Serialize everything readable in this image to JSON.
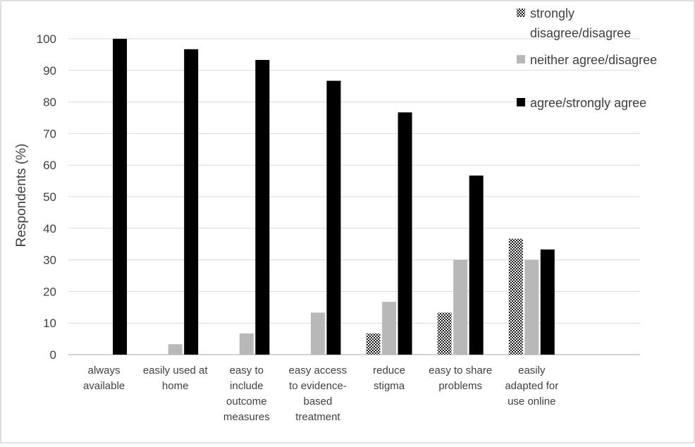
{
  "chart_data": {
    "type": "bar",
    "ylabel": "Respondents (%)",
    "xlabel": "",
    "ylim": [
      0,
      100
    ],
    "yticks": [
      0,
      10,
      20,
      30,
      40,
      50,
      60,
      70,
      80,
      90,
      100
    ],
    "grid": true,
    "legend_position": "top-right",
    "categories": [
      [
        "always",
        "available"
      ],
      [
        "easily used at",
        "home"
      ],
      [
        "easy to",
        "include",
        "outcome",
        "measures"
      ],
      [
        "easy access",
        "to evidence-",
        "based",
        "treatment"
      ],
      [
        "reduce",
        "stigma"
      ],
      [
        "easy to share",
        "problems"
      ],
      [
        "easily",
        "adapted for",
        "use online"
      ]
    ],
    "series": [
      {
        "name": "strongly disagree/disagree",
        "legend_lines": [
          "strongly",
          "disagree/disagree"
        ],
        "style": "crosshatch",
        "color": "#1a1a1a",
        "values": [
          0,
          0,
          0,
          0,
          6.7,
          13.3,
          36.7
        ]
      },
      {
        "name": "neither agree/disagree",
        "legend_lines": [
          "neither agree/disagree"
        ],
        "style": "solid",
        "color": "#b8b8b8",
        "values": [
          0,
          3.3,
          6.7,
          13.3,
          16.7,
          30,
          30
        ]
      },
      {
        "name": "agree/strongly agree",
        "legend_lines": [
          "agree/strongly agree"
        ],
        "style": "solid",
        "color": "#000000",
        "values": [
          100,
          96.7,
          93.3,
          86.7,
          76.7,
          56.7,
          33.3
        ]
      }
    ]
  }
}
